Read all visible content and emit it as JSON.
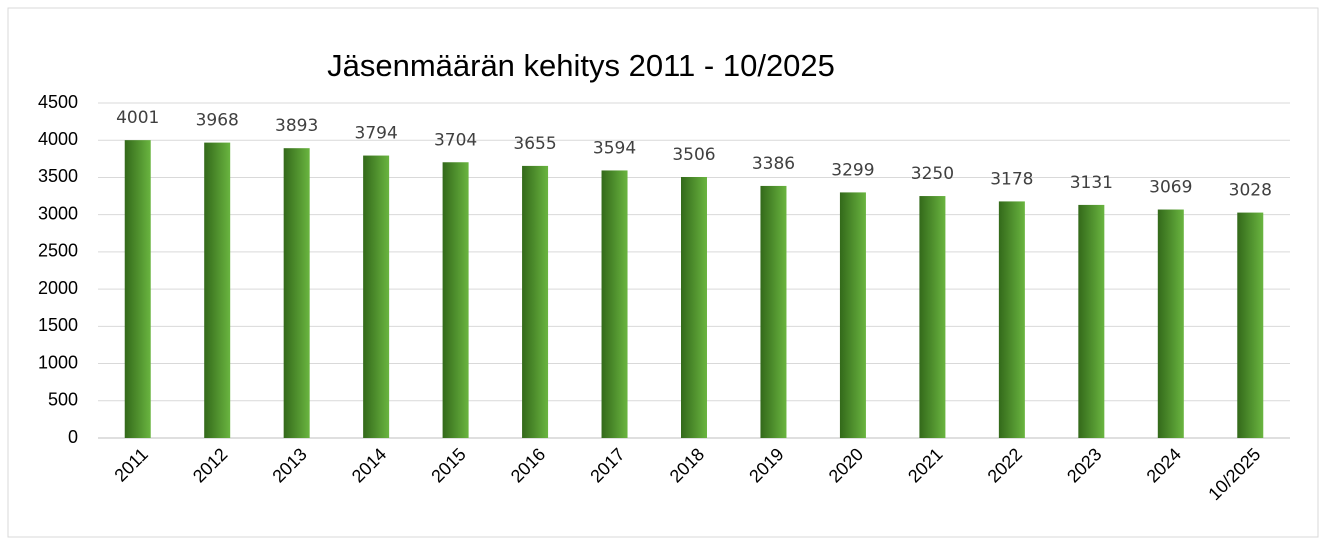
{
  "chart_data": {
    "type": "bar",
    "title": "Jäsenmäärän kehitys 2011 - 10/2025",
    "categories": [
      "2011",
      "2012",
      "2013",
      "2014",
      "2015",
      "2016",
      "2017",
      "2018",
      "2019",
      "2020",
      "2021",
      "2022",
      "2023",
      "2024",
      "10/2025"
    ],
    "values": [
      4001,
      3968,
      3893,
      3794,
      3704,
      3655,
      3594,
      3506,
      3386,
      3299,
      3250,
      3178,
      3131,
      3069,
      3028
    ],
    "color": "#6ab540",
    "ylim": [
      0,
      4500
    ],
    "yticks": [
      0,
      500,
      1000,
      1500,
      2000,
      2500,
      3000,
      3500,
      4000,
      4500
    ],
    "grid": true
  }
}
